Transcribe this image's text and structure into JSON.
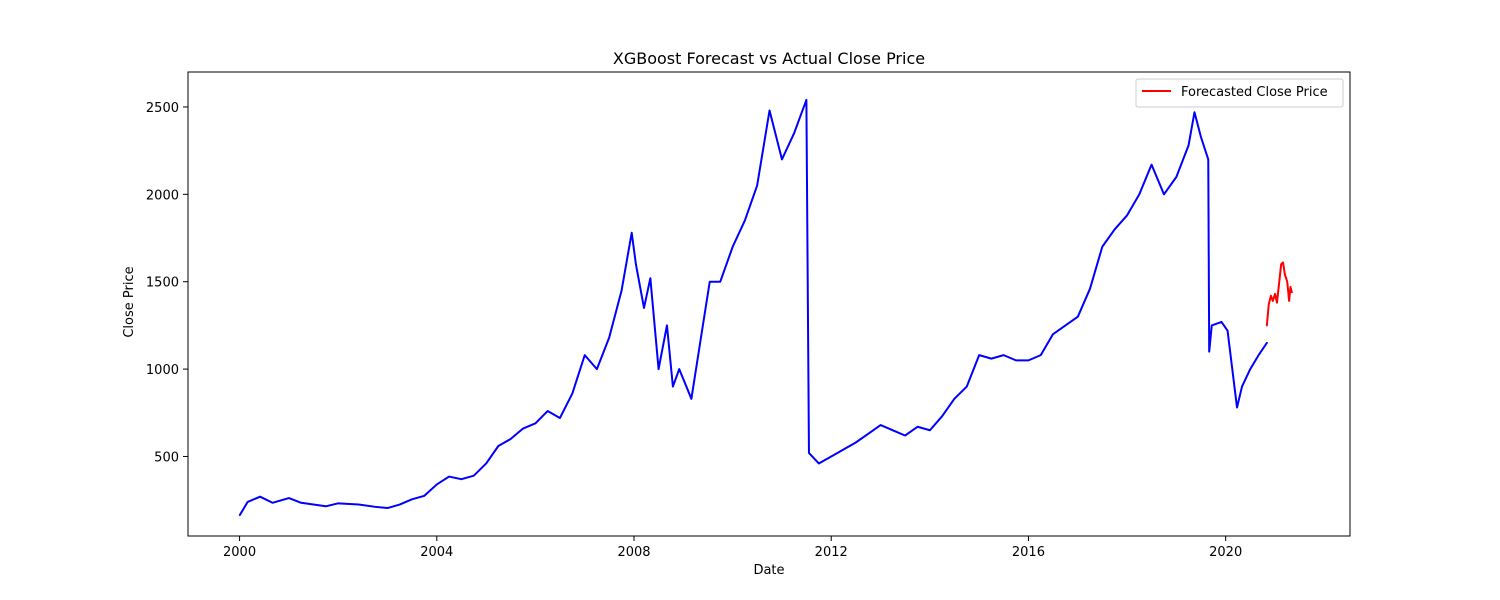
{
  "chart_data": {
    "type": "line",
    "title": "XGBoost Forecast vs Actual Close Price",
    "xlabel": "Date",
    "ylabel": "Close Price",
    "xlim": [
      "1998-12-15",
      "2022-07-10"
    ],
    "ylim": [
      45,
      2700
    ],
    "x_ticks": [
      "2000",
      "2004",
      "2008",
      "2012",
      "2016",
      "2020"
    ],
    "y_ticks": [
      500,
      1000,
      1500,
      2000,
      2500
    ],
    "grid": false,
    "legend_position": "upper right",
    "series": [
      {
        "name": "",
        "color": "#0000ff",
        "points": [
          [
            "2000-01-03",
            165
          ],
          [
            "2000-03-01",
            240
          ],
          [
            "2000-06-01",
            270
          ],
          [
            "2000-09-01",
            235
          ],
          [
            "2001-01-01",
            262
          ],
          [
            "2001-04-01",
            235
          ],
          [
            "2001-07-01",
            225
          ],
          [
            "2001-10-01",
            215
          ],
          [
            "2002-01-01",
            232
          ],
          [
            "2002-06-01",
            225
          ],
          [
            "2002-10-01",
            212
          ],
          [
            "2003-01-01",
            205
          ],
          [
            "2003-04-01",
            225
          ],
          [
            "2003-07-01",
            255
          ],
          [
            "2003-10-01",
            275
          ],
          [
            "2004-01-01",
            340
          ],
          [
            "2004-04-01",
            385
          ],
          [
            "2004-07-01",
            370
          ],
          [
            "2004-10-01",
            390
          ],
          [
            "2005-01-01",
            460
          ],
          [
            "2005-04-01",
            560
          ],
          [
            "2005-07-01",
            600
          ],
          [
            "2005-10-01",
            660
          ],
          [
            "2006-01-01",
            690
          ],
          [
            "2006-04-01",
            760
          ],
          [
            "2006-07-01",
            720
          ],
          [
            "2006-10-01",
            860
          ],
          [
            "2007-01-01",
            1080
          ],
          [
            "2007-04-01",
            1000
          ],
          [
            "2007-07-01",
            1180
          ],
          [
            "2007-10-01",
            1450
          ],
          [
            "2007-12-15",
            1780
          ],
          [
            "2008-01-15",
            1600
          ],
          [
            "2008-03-15",
            1350
          ],
          [
            "2008-05-01",
            1520
          ],
          [
            "2008-07-01",
            1000
          ],
          [
            "2008-09-01",
            1250
          ],
          [
            "2008-10-15",
            900
          ],
          [
            "2008-12-01",
            1000
          ],
          [
            "2009-03-01",
            830
          ],
          [
            "2009-05-15",
            1200
          ],
          [
            "2009-07-15",
            1500
          ],
          [
            "2009-10-01",
            1500
          ],
          [
            "2010-01-01",
            1700
          ],
          [
            "2010-04-01",
            1850
          ],
          [
            "2010-07-01",
            2050
          ],
          [
            "2010-10-01",
            2480
          ],
          [
            "2011-01-01",
            2200
          ],
          [
            "2011-04-01",
            2350
          ],
          [
            "2011-07-01",
            2540
          ],
          [
            "2011-07-20",
            520
          ],
          [
            "2011-10-01",
            460
          ],
          [
            "2012-01-01",
            500
          ],
          [
            "2012-04-01",
            540
          ],
          [
            "2012-07-01",
            580
          ],
          [
            "2012-10-01",
            630
          ],
          [
            "2013-01-01",
            680
          ],
          [
            "2013-04-01",
            650
          ],
          [
            "2013-07-01",
            620
          ],
          [
            "2013-10-01",
            670
          ],
          [
            "2014-01-01",
            650
          ],
          [
            "2014-04-01",
            730
          ],
          [
            "2014-07-01",
            830
          ],
          [
            "2014-10-01",
            900
          ],
          [
            "2015-01-01",
            1080
          ],
          [
            "2015-04-01",
            1060
          ],
          [
            "2015-07-01",
            1080
          ],
          [
            "2015-10-01",
            1050
          ],
          [
            "2016-01-01",
            1050
          ],
          [
            "2016-04-01",
            1080
          ],
          [
            "2016-07-01",
            1200
          ],
          [
            "2016-10-01",
            1250
          ],
          [
            "2017-01-01",
            1300
          ],
          [
            "2017-04-01",
            1460
          ],
          [
            "2017-07-01",
            1700
          ],
          [
            "2017-10-01",
            1800
          ],
          [
            "2018-01-01",
            1880
          ],
          [
            "2018-04-01",
            2000
          ],
          [
            "2018-07-01",
            2170
          ],
          [
            "2018-10-01",
            2000
          ],
          [
            "2019-01-01",
            2100
          ],
          [
            "2019-04-01",
            2280
          ],
          [
            "2019-05-15",
            2470
          ],
          [
            "2019-07-01",
            2330
          ],
          [
            "2019-08-25",
            2200
          ],
          [
            "2019-09-01",
            1100
          ],
          [
            "2019-09-20",
            1250
          ],
          [
            "2019-12-01",
            1270
          ],
          [
            "2020-01-15",
            1220
          ],
          [
            "2020-03-25",
            780
          ],
          [
            "2020-05-01",
            900
          ],
          [
            "2020-07-01",
            1000
          ],
          [
            "2020-09-01",
            1080
          ],
          [
            "2020-11-01",
            1150
          ]
        ]
      },
      {
        "name": "Forecasted Close Price",
        "color": "#ff0000",
        "points": [
          [
            "2020-11-01",
            1250
          ],
          [
            "2020-11-15",
            1370
          ],
          [
            "2020-12-01",
            1420
          ],
          [
            "2020-12-15",
            1390
          ],
          [
            "2021-01-01",
            1430
          ],
          [
            "2021-01-15",
            1380
          ],
          [
            "2021-02-01",
            1500
          ],
          [
            "2021-02-15",
            1600
          ],
          [
            "2021-03-01",
            1610
          ],
          [
            "2021-03-15",
            1540
          ],
          [
            "2021-04-01",
            1500
          ],
          [
            "2021-04-15",
            1390
          ],
          [
            "2021-04-25",
            1470
          ],
          [
            "2021-05-05",
            1440
          ]
        ]
      }
    ]
  }
}
